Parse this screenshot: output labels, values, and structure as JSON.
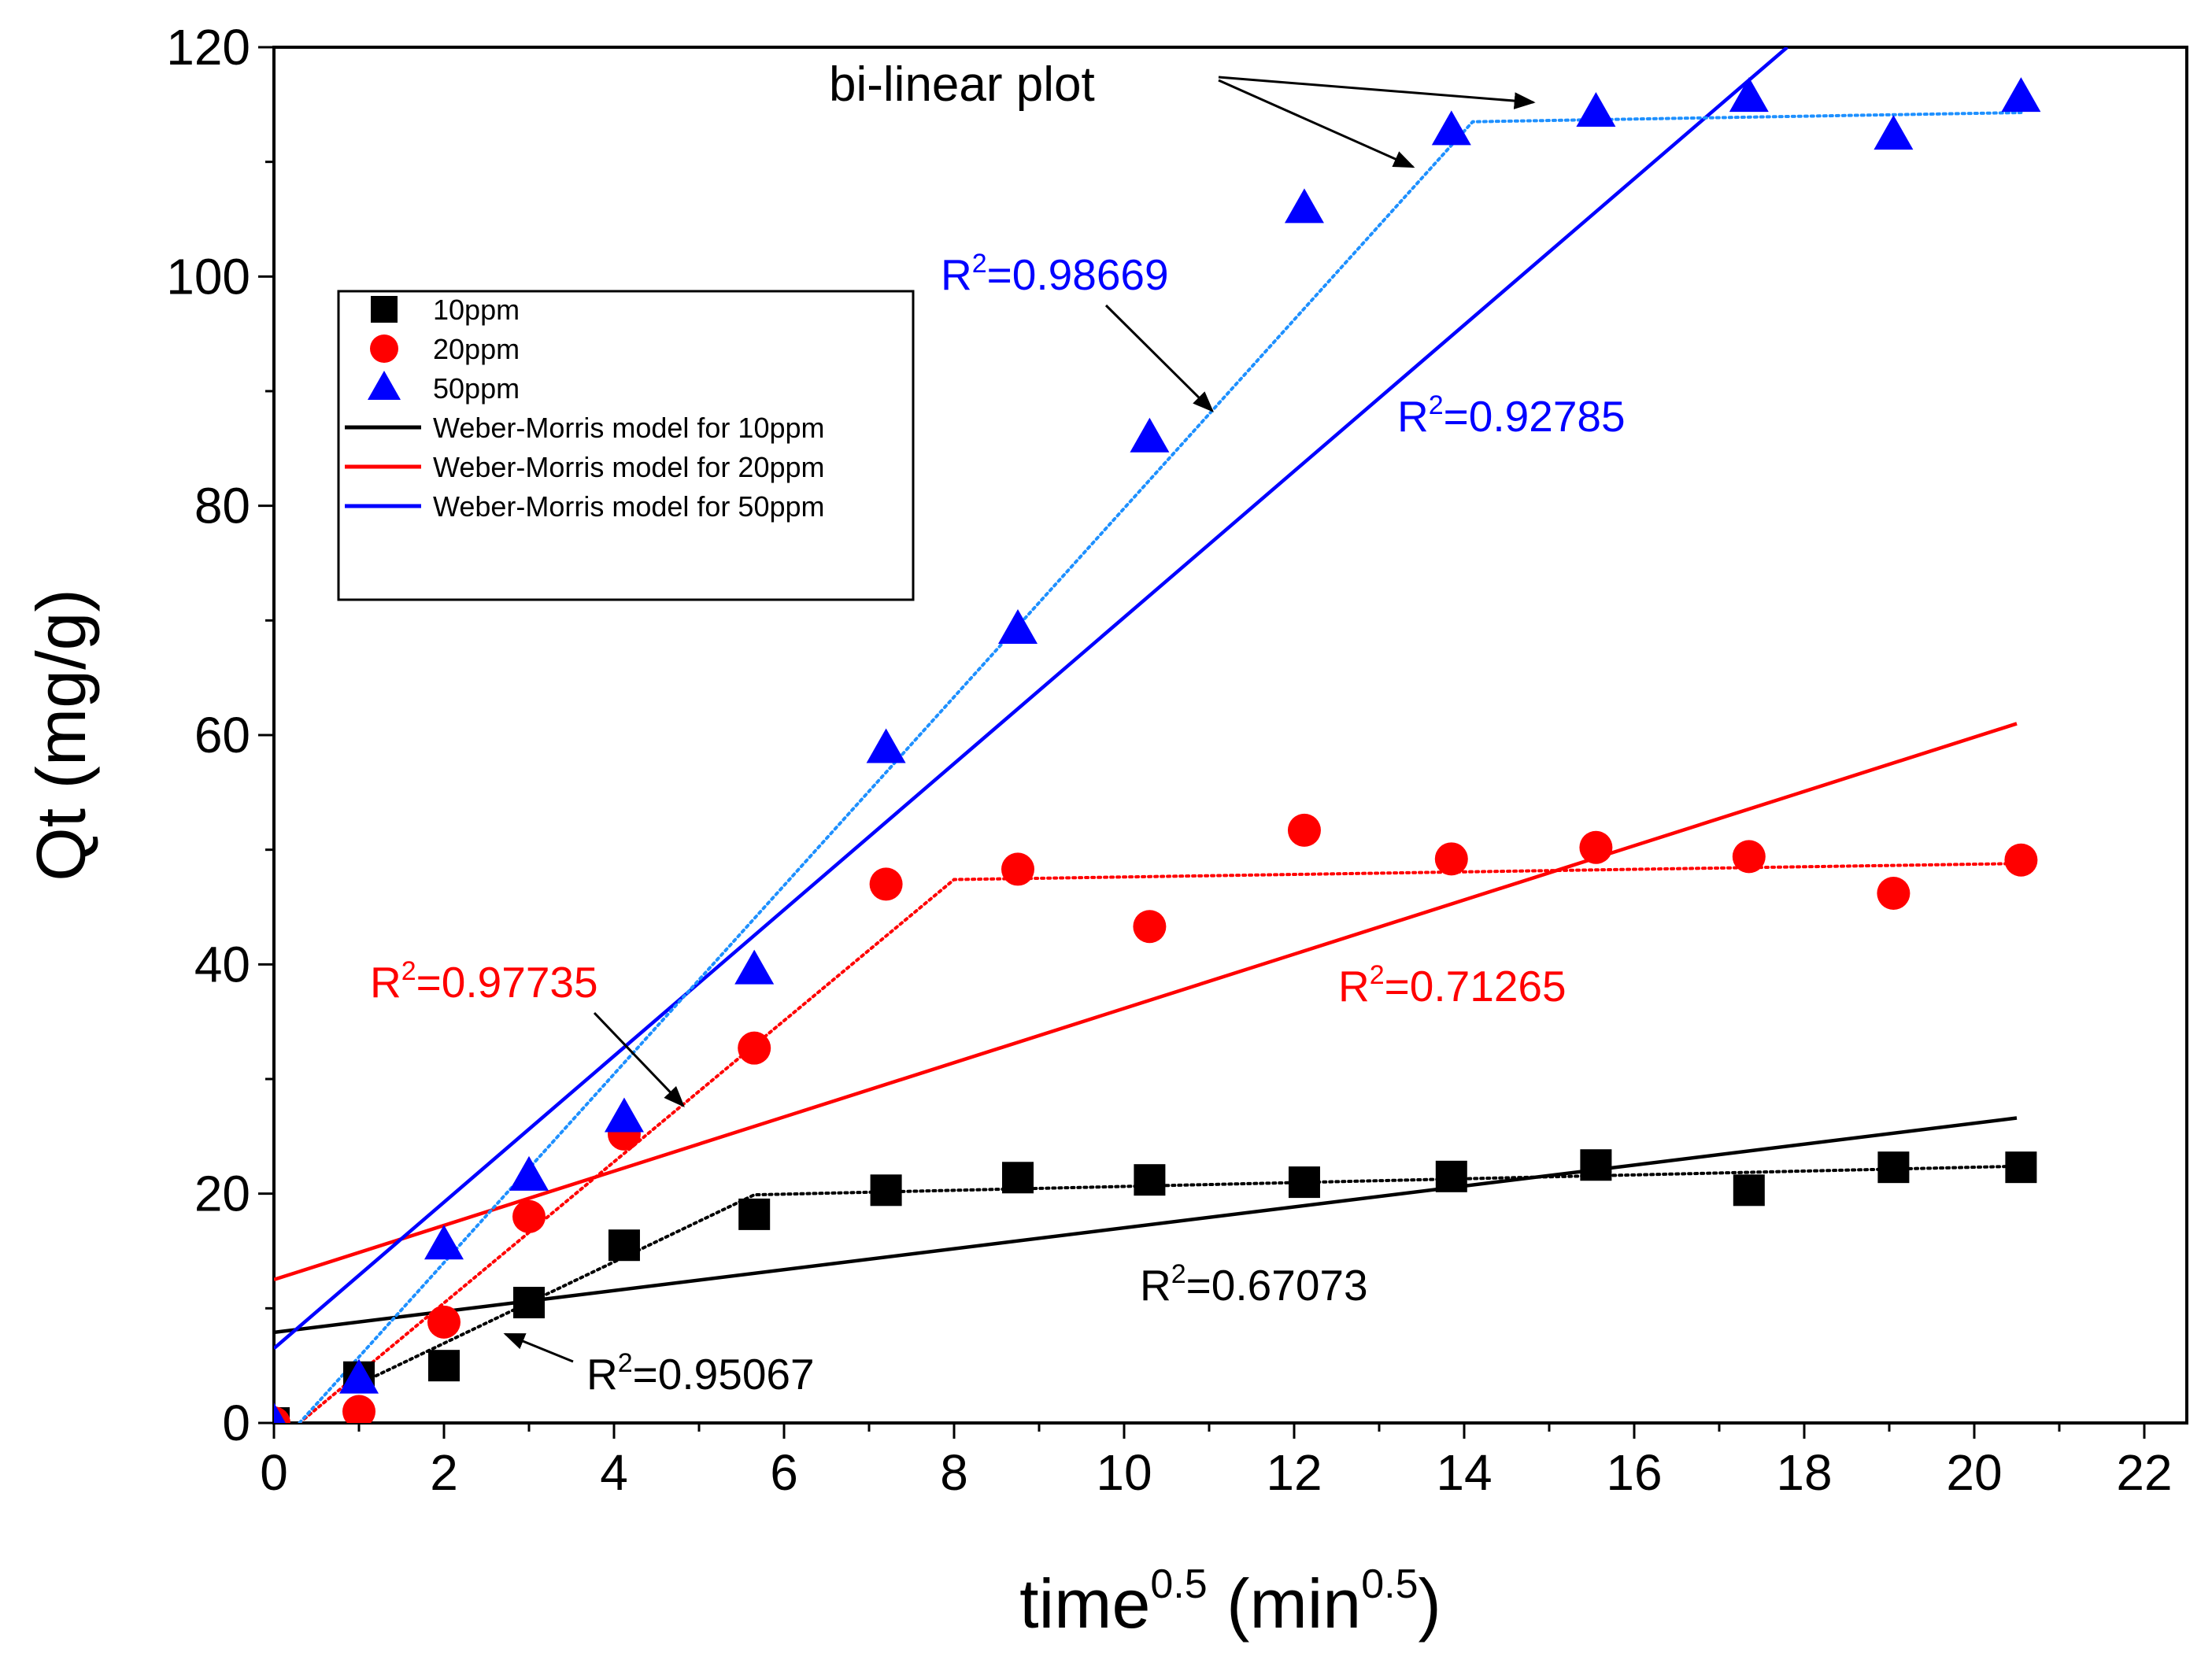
{
  "chart_data": {
    "type": "scatter",
    "title": "",
    "xlabel": {
      "base": "time",
      "sup": "0.5",
      "unit_open": " (min",
      "unit_sup": "0.5",
      "unit_close": ")"
    },
    "ylabel": "Qt (mg/g)",
    "xlim": [
      0,
      22.5
    ],
    "ylim": [
      0,
      120
    ],
    "xticks": [
      0,
      2,
      4,
      6,
      8,
      10,
      12,
      14,
      16,
      18,
      20,
      22
    ],
    "yticks": [
      0,
      20,
      40,
      60,
      80,
      100,
      120
    ],
    "x": [
      0,
      1,
      2,
      3,
      4.12,
      5.65,
      7.2,
      8.75,
      10.3,
      12.12,
      13.85,
      15.55,
      17.35,
      19.05,
      20.55
    ],
    "series": [
      {
        "name": "10ppm",
        "marker": "square",
        "color": "#000000",
        "values": [
          0,
          4,
          5,
          10.5,
          15.5,
          18.2,
          20.3,
          21.4,
          21.2,
          21,
          21.5,
          22.5,
          20.3,
          22.3,
          22.3
        ]
      },
      {
        "name": "20ppm",
        "marker": "circle",
        "color": "#ff0000",
        "values": [
          0,
          1,
          8.8,
          18,
          25.2,
          32.7,
          47,
          48.3,
          43.3,
          51.7,
          49.2,
          50.2,
          49.4,
          46.2,
          49.1
        ]
      },
      {
        "name": "50ppm",
        "marker": "triangle",
        "color": "#0000ff",
        "values": [
          0,
          3.8,
          15.5,
          21.5,
          26.6,
          39.5,
          58.8,
          69.2,
          85.9,
          105.9,
          112.7,
          114.3,
          115.6,
          112.3,
          115.6
        ]
      }
    ],
    "models": [
      {
        "name": "Weber-Morris model for 10ppm",
        "color": "#000000",
        "x": [
          0,
          20.5
        ],
        "y": [
          7.9,
          26.6
        ]
      },
      {
        "name": "Weber-Morris model for 20ppm",
        "color": "#ff0000",
        "x": [
          0,
          20.5
        ],
        "y": [
          12.5,
          61
        ]
      },
      {
        "name": "Weber-Morris model for 50ppm",
        "color": "#0000ff",
        "x": [
          0,
          17.8
        ],
        "y": [
          6.5,
          120
        ]
      }
    ],
    "bilinear": [
      {
        "name": "10ppm bi-linear",
        "color": "#000000",
        "points": [
          [
            1,
            3.4
          ],
          [
            5.65,
            19.9
          ],
          [
            20.55,
            22.4
          ]
        ]
      },
      {
        "name": "20ppm bi-linear",
        "color": "#ff0000",
        "points": [
          [
            0.3,
            0
          ],
          [
            8,
            47.4
          ],
          [
            20.55,
            48.8
          ]
        ]
      },
      {
        "name": "50ppm bi-linear",
        "color": "#1e90ff",
        "points": [
          [
            0.3,
            0
          ],
          [
            14.1,
            113.5
          ],
          [
            20.55,
            114.3
          ]
        ]
      }
    ],
    "r2_labels": [
      {
        "base": "R",
        "sup": "2",
        "value": "=0.98669",
        "color": "#0000ff"
      },
      {
        "base": "R",
        "sup": "2",
        "value": "=0.92785",
        "color": "#0000ff"
      },
      {
        "base": "R",
        "sup": "2",
        "value": "=0.97735",
        "color": "#ff0000"
      },
      {
        "base": "R",
        "sup": "2",
        "value": "=0.71265",
        "color": "#ff0000"
      },
      {
        "base": "R",
        "sup": "2",
        "value": "=0.67073",
        "color": "#000000"
      },
      {
        "base": "R",
        "sup": "2",
        "value": "=0.95067",
        "color": "#000000"
      }
    ],
    "annotation": "bi-linear plot",
    "legend": [
      {
        "label": "10ppm",
        "kind": "square",
        "color": "#000000"
      },
      {
        "label": "20ppm",
        "kind": "circle",
        "color": "#ff0000"
      },
      {
        "label": "50ppm",
        "kind": "triangle",
        "color": "#0000ff"
      },
      {
        "label": "Weber-Morris model for 10ppm",
        "kind": "line",
        "color": "#000000"
      },
      {
        "label": "Weber-Morris model for 20ppm",
        "kind": "line",
        "color": "#ff0000"
      },
      {
        "label": "Weber-Morris model for 50ppm",
        "kind": "line",
        "color": "#0000ff"
      }
    ],
    "legend_position": "upper-left"
  }
}
